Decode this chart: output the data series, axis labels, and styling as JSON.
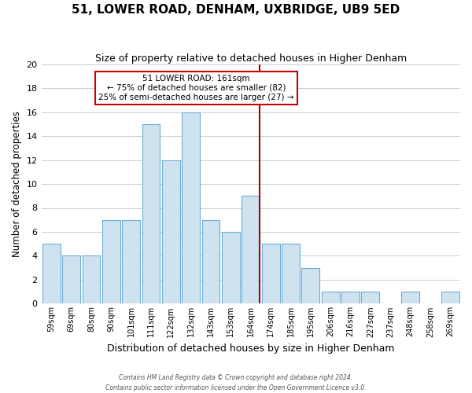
{
  "title": "51, LOWER ROAD, DENHAM, UXBRIDGE, UB9 5ED",
  "subtitle": "Size of property relative to detached houses in Higher Denham",
  "xlabel": "Distribution of detached houses by size in Higher Denham",
  "ylabel": "Number of detached properties",
  "footer_line1": "Contains HM Land Registry data © Crown copyright and database right 2024.",
  "footer_line2": "Contains public sector information licensed under the Open Government Licence v3.0.",
  "bin_labels": [
    "59sqm",
    "69sqm",
    "80sqm",
    "90sqm",
    "101sqm",
    "111sqm",
    "122sqm",
    "132sqm",
    "143sqm",
    "153sqm",
    "164sqm",
    "174sqm",
    "185sqm",
    "195sqm",
    "206sqm",
    "216sqm",
    "227sqm",
    "237sqm",
    "248sqm",
    "258sqm",
    "269sqm"
  ],
  "counts": [
    5,
    4,
    4,
    7,
    7,
    15,
    12,
    16,
    7,
    6,
    9,
    5,
    5,
    3,
    1,
    1,
    1,
    0,
    1,
    0,
    1
  ],
  "bar_color": "#cfe2f0",
  "bar_edge_color": "#6daed4",
  "vline_index": 10,
  "vline_color": "#aa0000",
  "annotation_text_line1": "51 LOWER ROAD: 161sqm",
  "annotation_text_line2": "← 75% of detached houses are smaller (82)",
  "annotation_text_line3": "25% of semi-detached houses are larger (27) →",
  "annotation_box_facecolor": "#ffffff",
  "annotation_box_edgecolor": "#cc0000",
  "ylim": [
    0,
    20
  ],
  "yticks": [
    0,
    2,
    4,
    6,
    8,
    10,
    12,
    14,
    16,
    18,
    20
  ],
  "grid_color": "#cccccc",
  "fig_bg_color": "#ffffff",
  "ax_bg_color": "#ffffff",
  "title_fontsize": 11,
  "subtitle_fontsize": 9,
  "xlabel_fontsize": 9,
  "ylabel_fontsize": 8.5
}
